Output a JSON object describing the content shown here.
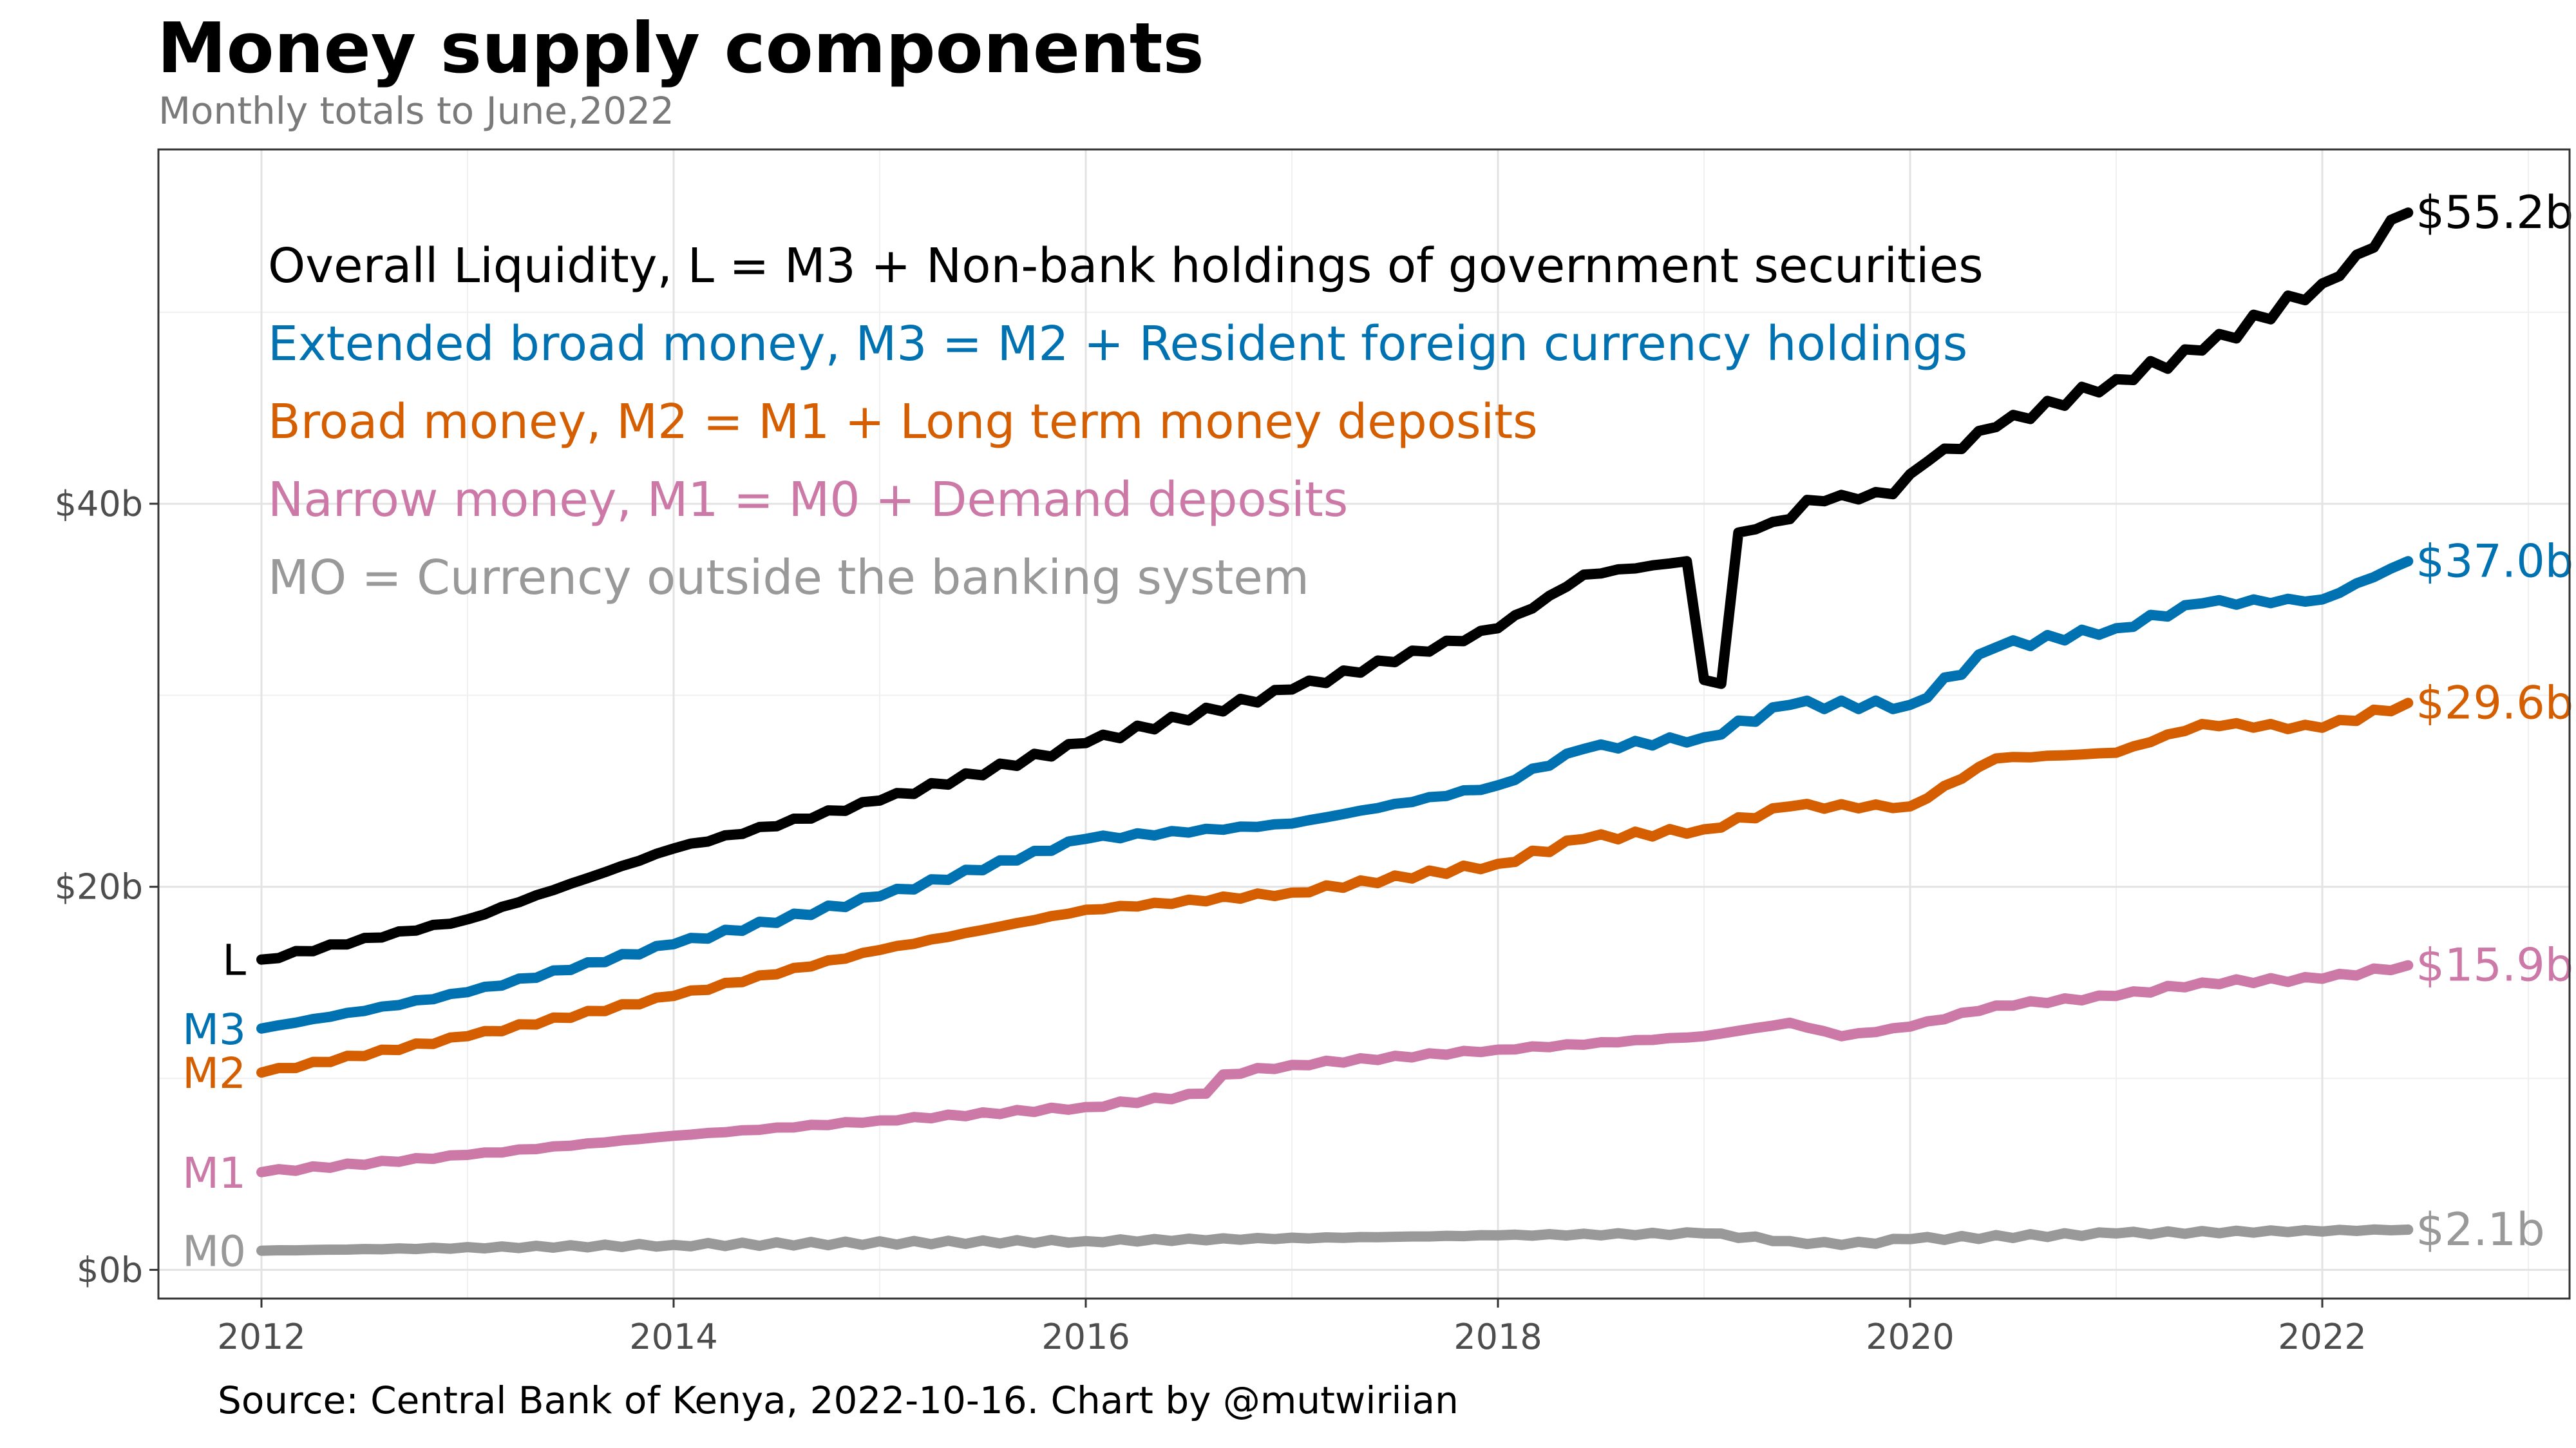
{
  "title": "Money supply components",
  "subtitle": "Monthly totals to June,2022",
  "caption": "Source: Central Bank of Kenya, 2022-10-16. Chart by @mutwiriian",
  "chart_data": {
    "type": "line",
    "x_start": "2012-01",
    "x_end": "2022-06",
    "x_step": "month",
    "xlim": [
      2011.5,
      2023.2
    ],
    "ylim": [
      -1.5,
      58.5
    ],
    "y_ticks": [
      0,
      20,
      40
    ],
    "y_tick_labels": [
      "$0b",
      "$20b",
      "$40b"
    ],
    "x_ticks": [
      2012,
      2014,
      2016,
      2018,
      2020,
      2022
    ],
    "x_tick_labels": [
      "2012",
      "2014",
      "2016",
      "2018",
      "2020",
      "2022"
    ],
    "grid": true,
    "legend": [
      {
        "text": "Overall Liquidity, L = M3 + Non-bank holdings of government securities",
        "color": "#000000"
      },
      {
        "text": "Extended broad money, M3 = M2 + Resident foreign currency holdings",
        "color": "#0072B2"
      },
      {
        "text": "Broad money, M2 = M1 + Long term money deposits",
        "color": "#D55E00"
      },
      {
        "text": "Narrow money, M1 = M0 + Demand deposits",
        "color": "#CC79A7"
      },
      {
        "text": "MO = Currency outside the banking system",
        "color": "#999999"
      }
    ],
    "series": [
      {
        "name": "L",
        "end_label": "$55.2b",
        "color": "#000000",
        "anchors": [
          [
            "2012-01",
            16.2
          ],
          [
            "2013-01",
            18.3
          ],
          [
            "2014-01",
            22.0
          ],
          [
            "2015-01",
            24.5
          ],
          [
            "2016-01",
            27.5
          ],
          [
            "2017-01",
            30.3
          ],
          [
            "2018-01",
            33.5
          ],
          [
            "2018-04",
            35.2
          ],
          [
            "2018-06",
            36.3
          ],
          [
            "2018-12",
            37.0
          ],
          [
            "2019-01",
            30.8
          ],
          [
            "2019-02",
            30.6
          ],
          [
            "2019-03",
            38.5
          ],
          [
            "2019-06",
            39.2
          ],
          [
            "2019-07",
            40.2
          ],
          [
            "2019-12",
            40.5
          ],
          [
            "2020-02",
            42.2
          ],
          [
            "2020-06",
            44.0
          ],
          [
            "2021-01",
            46.5
          ],
          [
            "2021-06",
            48.0
          ],
          [
            "2022-01",
            51.5
          ],
          [
            "2022-03",
            53.0
          ],
          [
            "2022-06",
            55.2
          ]
        ]
      },
      {
        "name": "M3",
        "end_label": "$37.0b",
        "color": "#0072B2",
        "anchors": [
          [
            "2012-01",
            12.6
          ],
          [
            "2013-01",
            14.5
          ],
          [
            "2014-01",
            17.0
          ],
          [
            "2015-01",
            19.5
          ],
          [
            "2016-01",
            22.5
          ],
          [
            "2017-01",
            23.3
          ],
          [
            "2018-01",
            25.3
          ],
          [
            "2018-06",
            27.2
          ],
          [
            "2019-01",
            27.8
          ],
          [
            "2019-06",
            29.5
          ],
          [
            "2020-01",
            29.5
          ],
          [
            "2020-06",
            32.5
          ],
          [
            "2021-01",
            33.5
          ],
          [
            "2021-06",
            34.8
          ],
          [
            "2022-01",
            35.0
          ],
          [
            "2022-06",
            37.0
          ]
        ]
      },
      {
        "name": "M2",
        "end_label": "$29.6b",
        "color": "#D55E00",
        "anchors": [
          [
            "2012-01",
            10.3
          ],
          [
            "2013-01",
            12.2
          ],
          [
            "2014-01",
            14.3
          ],
          [
            "2015-01",
            16.7
          ],
          [
            "2016-01",
            18.8
          ],
          [
            "2017-01",
            19.7
          ],
          [
            "2018-01",
            21.2
          ],
          [
            "2018-06",
            22.5
          ],
          [
            "2019-01",
            23.0
          ],
          [
            "2019-06",
            24.2
          ],
          [
            "2020-01",
            24.2
          ],
          [
            "2020-06",
            26.7
          ],
          [
            "2021-01",
            27.0
          ],
          [
            "2021-06",
            28.5
          ],
          [
            "2022-01",
            28.3
          ],
          [
            "2022-06",
            29.6
          ]
        ]
      },
      {
        "name": "M1",
        "end_label": "$15.9b",
        "color": "#CC79A7",
        "anchors": [
          [
            "2012-01",
            5.1
          ],
          [
            "2013-01",
            6.0
          ],
          [
            "2014-01",
            7.0
          ],
          [
            "2015-01",
            7.8
          ],
          [
            "2016-01",
            8.5
          ],
          [
            "2016-08",
            9.2
          ],
          [
            "2016-09",
            10.2
          ],
          [
            "2017-01",
            10.7
          ],
          [
            "2018-01",
            11.5
          ],
          [
            "2019-01",
            12.2
          ],
          [
            "2019-06",
            12.9
          ],
          [
            "2019-09",
            12.2
          ],
          [
            "2020-01",
            12.7
          ],
          [
            "2020-06",
            13.8
          ],
          [
            "2021-01",
            14.3
          ],
          [
            "2021-06",
            15.0
          ],
          [
            "2022-01",
            15.2
          ],
          [
            "2022-06",
            15.9
          ]
        ]
      },
      {
        "name": "M0",
        "end_label": "$2.1b",
        "color": "#999999",
        "anchors": [
          [
            "2012-01",
            1.0
          ],
          [
            "2014-01",
            1.3
          ],
          [
            "2016-01",
            1.5
          ],
          [
            "2018-01",
            1.8
          ],
          [
            "2019-01",
            1.9
          ],
          [
            "2019-06",
            1.5
          ],
          [
            "2019-09",
            1.3
          ],
          [
            "2020-01",
            1.6
          ],
          [
            "2021-01",
            1.9
          ],
          [
            "2022-06",
            2.1
          ]
        ]
      }
    ]
  }
}
